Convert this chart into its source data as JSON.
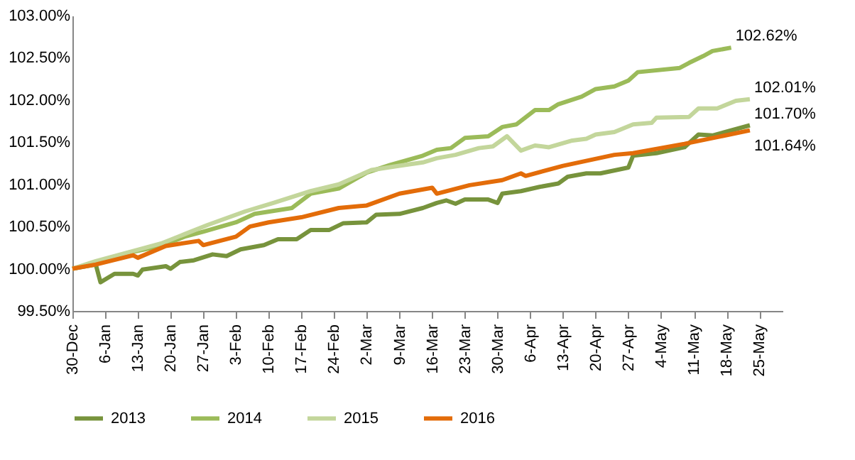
{
  "chart_data": {
    "type": "line",
    "xlim": [
      "2015-12-30",
      "2016-05-30"
    ],
    "xticks": [
      {
        "value": "2015-12-30",
        "label": "30-Dec"
      },
      {
        "value": "2016-01-06",
        "label": "6-Jan"
      },
      {
        "value": "2016-01-13",
        "label": "13-Jan"
      },
      {
        "value": "2016-01-20",
        "label": "20-Jan"
      },
      {
        "value": "2016-01-27",
        "label": "27-Jan"
      },
      {
        "value": "2016-02-03",
        "label": "3-Feb"
      },
      {
        "value": "2016-02-10",
        "label": "10-Feb"
      },
      {
        "value": "2016-02-17",
        "label": "17-Feb"
      },
      {
        "value": "2016-02-24",
        "label": "24-Feb"
      },
      {
        "value": "2016-03-02",
        "label": "2-Mar"
      },
      {
        "value": "2016-03-09",
        "label": "9-Mar"
      },
      {
        "value": "2016-03-16",
        "label": "16-Mar"
      },
      {
        "value": "2016-03-23",
        "label": "23-Mar"
      },
      {
        "value": "2016-03-30",
        "label": "30-Mar"
      },
      {
        "value": "2016-04-06",
        "label": "6-Apr"
      },
      {
        "value": "2016-04-13",
        "label": "13-Apr"
      },
      {
        "value": "2016-04-20",
        "label": "20-Apr"
      },
      {
        "value": "2016-04-27",
        "label": "27-Apr"
      },
      {
        "value": "2016-05-04",
        "label": "4-May"
      },
      {
        "value": "2016-05-11",
        "label": "11-May"
      },
      {
        "value": "2016-05-18",
        "label": "18-May"
      },
      {
        "value": "2016-05-25",
        "label": "25-May"
      }
    ],
    "ylim": [
      99.5,
      103.0
    ],
    "yticks": [
      {
        "value": 99.5,
        "label": "99.50%"
      },
      {
        "value": 100.0,
        "label": "100.00%"
      },
      {
        "value": 100.5,
        "label": "100.50%"
      },
      {
        "value": 101.0,
        "label": "101.00%"
      },
      {
        "value": 101.5,
        "label": "101.50%"
      },
      {
        "value": 102.0,
        "label": "102.00%"
      },
      {
        "value": 102.5,
        "label": "102.50%"
      },
      {
        "value": 103.0,
        "label": "103.00%"
      }
    ],
    "grid": false,
    "legend": "bottom",
    "marker": "none",
    "line_style": "solid",
    "series": [
      {
        "name": "2013",
        "color": "#77933c",
        "x": [
          "2015-12-30",
          "2016-01-04",
          "2016-01-05",
          "2016-01-08",
          "2016-01-12",
          "2016-01-13",
          "2016-01-14",
          "2016-01-19",
          "2016-01-20",
          "2016-01-22",
          "2016-01-25",
          "2016-01-29",
          "2016-02-01",
          "2016-02-04",
          "2016-02-09",
          "2016-02-12",
          "2016-02-16",
          "2016-02-19",
          "2016-02-23",
          "2016-02-26",
          "2016-03-02",
          "2016-03-04",
          "2016-03-09",
          "2016-03-14",
          "2016-03-17",
          "2016-03-19",
          "2016-03-21",
          "2016-03-23",
          "2016-03-28",
          "2016-03-30",
          "2016-03-31",
          "2016-04-04",
          "2016-04-08",
          "2016-04-12",
          "2016-04-14",
          "2016-04-18",
          "2016-04-21",
          "2016-04-27",
          "2016-04-28",
          "2016-05-03",
          "2016-05-09",
          "2016-05-12",
          "2016-05-15",
          "2016-05-23"
        ],
        "values": [
          100.0,
          100.05,
          99.84,
          99.94,
          99.94,
          99.92,
          99.99,
          100.03,
          100.0,
          100.08,
          100.1,
          100.17,
          100.15,
          100.23,
          100.28,
          100.35,
          100.35,
          100.46,
          100.46,
          100.54,
          100.55,
          100.64,
          100.65,
          100.72,
          100.78,
          100.81,
          100.77,
          100.82,
          100.82,
          100.78,
          100.89,
          100.92,
          100.97,
          101.01,
          101.09,
          101.13,
          101.13,
          101.2,
          101.34,
          101.37,
          101.44,
          101.59,
          101.58,
          101.7
        ]
      },
      {
        "name": "2014",
        "color": "#9bbb59",
        "x": [
          "2015-12-30",
          "2016-01-04",
          "2016-01-11",
          "2016-01-18",
          "2016-01-23",
          "2016-01-27",
          "2016-02-03",
          "2016-02-07",
          "2016-02-15",
          "2016-02-19",
          "2016-02-25",
          "2016-03-02",
          "2016-03-07",
          "2016-03-14",
          "2016-03-17",
          "2016-03-20",
          "2016-03-23",
          "2016-03-28",
          "2016-03-31",
          "2016-04-03",
          "2016-04-07",
          "2016-04-10",
          "2016-04-12",
          "2016-04-17",
          "2016-04-20",
          "2016-04-24",
          "2016-04-27",
          "2016-04-29",
          "2016-05-08",
          "2016-05-10",
          "2016-05-13",
          "2016-05-15",
          "2016-05-19"
        ],
        "values": [
          100.0,
          100.07,
          100.19,
          100.27,
          100.38,
          100.44,
          100.55,
          100.65,
          100.72,
          100.89,
          100.95,
          101.14,
          101.23,
          101.34,
          101.41,
          101.43,
          101.55,
          101.57,
          101.68,
          101.71,
          101.88,
          101.88,
          101.95,
          102.04,
          102.13,
          102.16,
          102.23,
          102.33,
          102.38,
          102.44,
          102.52,
          102.58,
          102.62
        ]
      },
      {
        "name": "2015",
        "color": "#c3d69b",
        "x": [
          "2015-12-30",
          "2016-01-04",
          "2016-01-12",
          "2016-01-18",
          "2016-01-23",
          "2016-01-28",
          "2016-02-05",
          "2016-02-11",
          "2016-02-19",
          "2016-02-25",
          "2016-03-03",
          "2016-03-09",
          "2016-03-14",
          "2016-03-17",
          "2016-03-21",
          "2016-03-26",
          "2016-03-29",
          "2016-04-01",
          "2016-04-04",
          "2016-04-07",
          "2016-04-10",
          "2016-04-15",
          "2016-04-18",
          "2016-04-20",
          "2016-04-24",
          "2016-04-28",
          "2016-05-02",
          "2016-05-03",
          "2016-05-10",
          "2016-05-12",
          "2016-05-16",
          "2016-05-20",
          "2016-05-23"
        ],
        "values": [
          100.0,
          100.09,
          100.21,
          100.3,
          100.41,
          100.52,
          100.68,
          100.78,
          100.92,
          101.0,
          101.17,
          101.22,
          101.26,
          101.31,
          101.35,
          101.43,
          101.45,
          101.57,
          101.4,
          101.46,
          101.44,
          101.52,
          101.54,
          101.59,
          101.62,
          101.71,
          101.73,
          101.79,
          101.8,
          101.9,
          101.9,
          101.99,
          102.01
        ]
      },
      {
        "name": "2016",
        "color": "#e36c09",
        "x": [
          "2015-12-30",
          "2016-01-04",
          "2016-01-12",
          "2016-01-13",
          "2016-01-19",
          "2016-01-26",
          "2016-01-27",
          "2016-02-03",
          "2016-02-06",
          "2016-02-10",
          "2016-02-17",
          "2016-02-25",
          "2016-03-02",
          "2016-03-09",
          "2016-03-16",
          "2016-03-17",
          "2016-03-24",
          "2016-03-31",
          "2016-04-04",
          "2016-04-05",
          "2016-04-13",
          "2016-04-24",
          "2016-04-28",
          "2016-05-09",
          "2016-05-23"
        ],
        "values": [
          100.0,
          100.05,
          100.16,
          100.13,
          100.27,
          100.33,
          100.28,
          100.38,
          100.5,
          100.55,
          100.61,
          100.72,
          100.75,
          100.89,
          100.96,
          100.89,
          100.99,
          101.05,
          101.13,
          101.1,
          101.22,
          101.35,
          101.37,
          101.48,
          101.64
        ]
      }
    ],
    "annotations": [
      {
        "text": "102.62%",
        "x": "2016-05-19",
        "y": 102.62
      },
      {
        "text": "102.01%",
        "x": "2016-05-23",
        "y": 102.01
      },
      {
        "text": "101.70%",
        "x": "2016-05-23",
        "y": 101.7
      },
      {
        "text": "101.64%",
        "x": "2016-05-23",
        "y": 101.64
      }
    ]
  }
}
